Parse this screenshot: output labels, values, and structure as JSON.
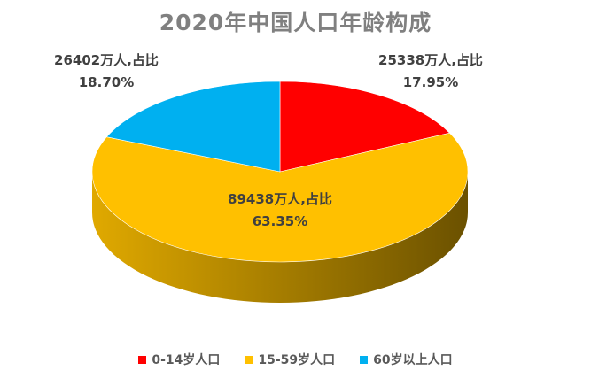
{
  "chart_data": {
    "type": "pie",
    "title": "2020年中国人口年龄构成",
    "categories": [
      "0-14岁人口",
      "15-59岁人口",
      "60岁以上人口"
    ],
    "values": [
      25338,
      89438,
      26402
    ],
    "percents": [
      17.95,
      63.35,
      18.7
    ],
    "labels": [
      [
        "25338万人,占比",
        "17.95%"
      ],
      [
        "89438万人,占比",
        "63.35%"
      ],
      [
        "26402万人,占比",
        "18.70%"
      ]
    ],
    "colors": [
      "#FF0000",
      "#FFC000",
      "#00B0F0"
    ],
    "legend_position": "bottom",
    "style": "3d-pie"
  }
}
